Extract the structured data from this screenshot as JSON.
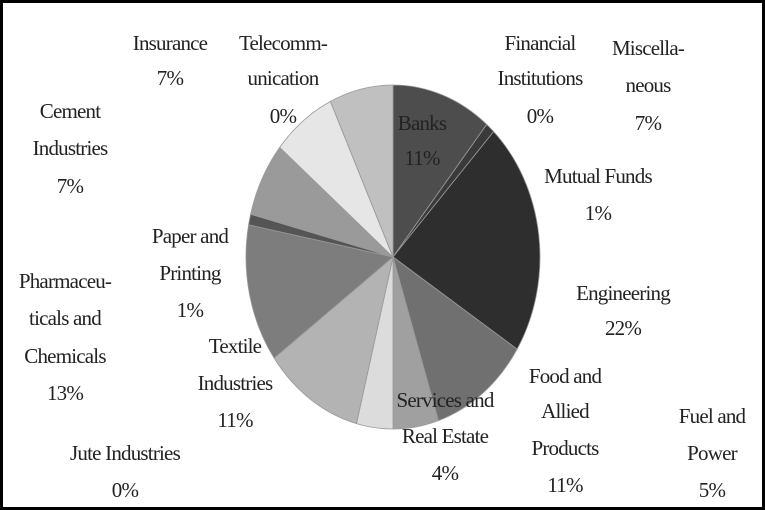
{
  "chart_data": {
    "type": "pie",
    "categories": [
      [
        "Banks"
      ],
      [
        "Financial",
        "Institutions"
      ],
      [
        "Mutual Funds"
      ],
      [
        "Engineering"
      ],
      [
        "Food and",
        "Allied",
        "Products"
      ],
      [
        "Fuel and",
        "Power"
      ],
      [
        "Services and",
        "Real Estate"
      ],
      [
        "Jute Industries"
      ],
      [
        "Textile",
        "Industries"
      ],
      [
        "Pharmaceu-",
        "ticals and",
        "Chemicals"
      ],
      [
        "Paper and",
        "Printing"
      ],
      [
        "Cement",
        "Industries"
      ],
      [
        "Insurance"
      ],
      [
        "Telecomm-",
        "unication"
      ],
      [
        "Miscella-",
        "neous"
      ]
    ],
    "values": [
      11,
      0,
      1,
      22,
      11,
      5,
      4,
      0,
      11,
      13,
      1,
      7,
      7,
      0,
      7
    ],
    "value_labels": [
      "11%",
      "0%",
      "1%",
      "22%",
      "11%",
      "5%",
      "4%",
      "0%",
      "11%",
      "13%",
      "1%",
      "7%",
      "7%",
      "0%",
      "7%"
    ],
    "colors": [
      "#4d4d4d",
      "#7a7a7a",
      "#3a3a3a",
      "#2e2e2e",
      "#707070",
      "#a0a0a0",
      "#dcdcdc",
      "#8a8a8a",
      "#b3b3b3",
      "#7d7d7d",
      "#555555",
      "#9a9a9a",
      "#e6e6e6",
      "#a8a8a8",
      "#c0c0c0"
    ]
  }
}
